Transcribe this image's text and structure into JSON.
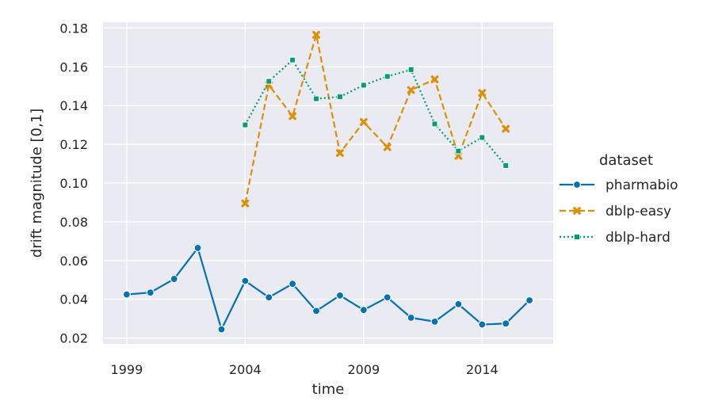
{
  "chart_data": {
    "type": "line",
    "xlabel": "time",
    "ylabel": "drift magnitude [0,1]",
    "xlim": [
      1998,
      2017
    ],
    "ylim": [
      0.017,
      0.183
    ],
    "xticks": [
      1999,
      2004,
      2009,
      2014
    ],
    "yticks": [
      "0.02",
      "0.04",
      "0.06",
      "0.08",
      "0.10",
      "0.12",
      "0.14",
      "0.16",
      "0.18"
    ],
    "grid": true,
    "background": "#eaeaf2",
    "legend": {
      "title": "dataset",
      "placement": "right"
    },
    "series": [
      {
        "name": "pharmabio",
        "color": "#0173b2",
        "linestyle": "solid",
        "marker": "circle",
        "x": [
          1999,
          2000,
          2001,
          2002,
          2003,
          2004,
          2005,
          2006,
          2007,
          2008,
          2009,
          2010,
          2011,
          2012,
          2013,
          2014,
          2015,
          2016
        ],
        "y": [
          0.0425,
          0.0435,
          0.0505,
          0.0665,
          0.0245,
          0.0495,
          0.041,
          0.048,
          0.034,
          0.042,
          0.0345,
          0.041,
          0.0305,
          0.0285,
          0.0375,
          0.027,
          0.0275,
          0.0395
        ]
      },
      {
        "name": "dblp-easy",
        "color": "#de8f05",
        "linestyle": "dashed",
        "marker": "x",
        "x": [
          2004,
          2005,
          2006,
          2007,
          2008,
          2009,
          2010,
          2011,
          2012,
          2013,
          2014,
          2015
        ],
        "y": [
          0.0895,
          0.1505,
          0.1345,
          0.1765,
          0.1155,
          0.1315,
          0.1185,
          0.148,
          0.1535,
          0.114,
          0.1465,
          0.128
        ]
      },
      {
        "name": "dblp-hard",
        "color": "#029e73",
        "linestyle": "dotted",
        "marker": "square",
        "x": [
          2004,
          2005,
          2006,
          2007,
          2008,
          2009,
          2010,
          2011,
          2012,
          2013,
          2014,
          2015
        ],
        "y": [
          0.13,
          0.1525,
          0.1635,
          0.1435,
          0.1445,
          0.1505,
          0.155,
          0.1585,
          0.1305,
          0.1165,
          0.1235,
          0.109
        ]
      }
    ]
  }
}
